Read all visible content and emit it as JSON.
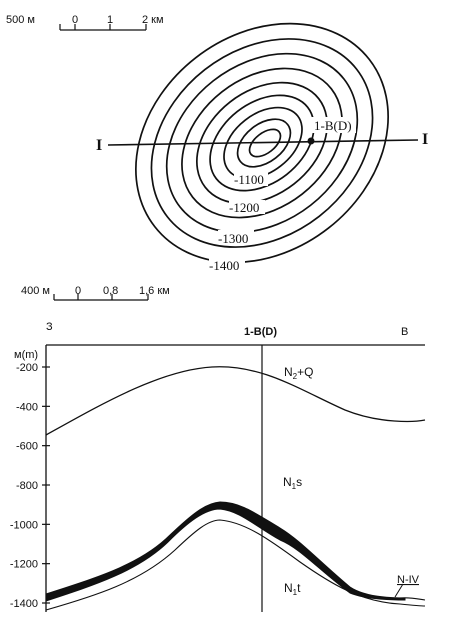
{
  "map": {
    "scale_bar": {
      "left_label": "500 м",
      "ticks": [
        "0",
        "1",
        "2 км"
      ]
    },
    "profile_line": {
      "left_end": "I",
      "right_end": "I"
    },
    "well": "1-B(D)",
    "contours": [
      {
        "value": -1100,
        "label": "-1100"
      },
      {
        "value": -1200,
        "label": "-1200"
      },
      {
        "value": -1300,
        "label": "-1300"
      },
      {
        "value": -1400,
        "label": "-1400"
      }
    ]
  },
  "section": {
    "scale_bar": {
      "left_label": "400 м",
      "ticks": [
        "0",
        "0,8",
        "1,6 км"
      ]
    },
    "west_label": "З",
    "east_label": "В",
    "well": "1-B(D)",
    "y_axis_title": "м(m)",
    "y_ticks": [
      "-200",
      "-400",
      "-600",
      "-800",
      "-1000",
      "-1200",
      "-1400"
    ],
    "y_tick_values": [
      -200,
      -400,
      -600,
      -800,
      -1000,
      -1200,
      -1400
    ],
    "units": [
      {
        "base": "N",
        "sub": "2",
        "rest": "+Q"
      },
      {
        "base": "N",
        "sub": "1",
        "rest": "s"
      },
      {
        "base": "N",
        "sub": "1",
        "rest": "t"
      }
    ],
    "horizon_label": "N-IV"
  }
}
